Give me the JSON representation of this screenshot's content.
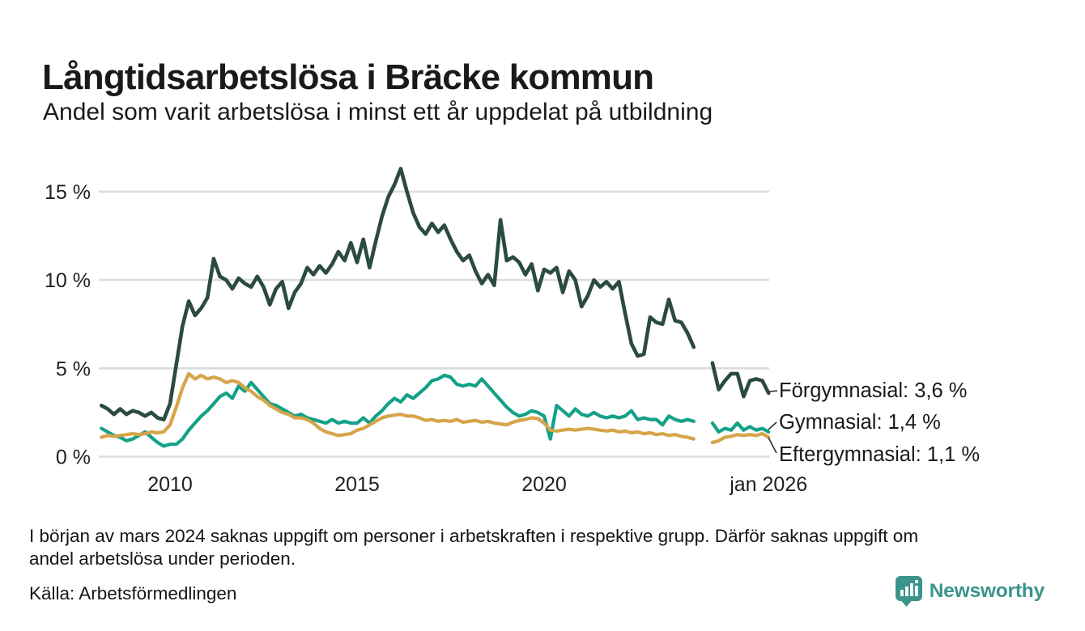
{
  "header": {
    "title": "Långtidsarbetslösa i Bräcke kommun",
    "subtitle": "Andel som varit arbetslösa i minst ett år uppdelat på utbildning"
  },
  "footer": {
    "note_lines": [
      "I början av mars 2024 saknas uppgift om personer i arbetskraften i respektive grupp. Därför saknas uppgift om",
      "andel arbetslösa under perioden."
    ],
    "source": "Källa: Arbetsförmedlingen"
  },
  "branding": {
    "name": "Newsworthy",
    "color": "#3b948c"
  },
  "chart_data": {
    "type": "line",
    "title": "Långtidsarbetslösa i Bräcke kommun",
    "subtitle": "Andel som varit arbetslösa i minst ett år uppdelat på utbildning",
    "x_start": "2008-03",
    "x_step_months": 2,
    "x_end": "2026-01",
    "ylim": [
      0,
      17
    ],
    "grid": true,
    "legend_position": "right-annotations",
    "missing_data_period": "2024 (vår), visas som glapp i linjerna",
    "y_ticks": [
      {
        "label": "0 %",
        "value": 0
      },
      {
        "label": "5 %",
        "value": 5
      },
      {
        "label": "10 %",
        "value": 10
      },
      {
        "label": "15 %",
        "value": 15
      }
    ],
    "x_ticks": [
      {
        "label": "2010",
        "year": 2010
      },
      {
        "label": "2015",
        "year": 2015
      },
      {
        "label": "2020",
        "year": 2020
      },
      {
        "label": "jan 2026",
        "year": 2026
      }
    ],
    "series": [
      {
        "id": "forgymnasial",
        "name": "Förgymnasial",
        "end_label": "Förgymnasial: 3,6 %",
        "latest_value": 3.6,
        "color": "#2a4a42",
        "width": 4.6,
        "values": [
          2.9,
          2.7,
          2.4,
          2.7,
          2.4,
          2.6,
          2.5,
          2.3,
          2.5,
          2.2,
          2.1,
          3.0,
          5.2,
          7.4,
          8.8,
          8.0,
          8.4,
          9.0,
          11.2,
          10.2,
          10.0,
          9.5,
          10.1,
          9.8,
          9.6,
          10.2,
          9.6,
          8.6,
          9.5,
          9.9,
          8.4,
          9.3,
          9.8,
          10.7,
          10.3,
          10.8,
          10.4,
          10.9,
          11.6,
          11.1,
          12.1,
          11.0,
          12.3,
          10.7,
          12.2,
          13.6,
          14.7,
          15.4,
          16.3,
          15.0,
          13.8,
          13.0,
          12.6,
          13.2,
          12.7,
          13.1,
          12.3,
          11.6,
          11.1,
          11.4,
          10.5,
          9.8,
          10.3,
          9.7,
          13.4,
          11.1,
          11.3,
          11.0,
          10.3,
          10.9,
          9.4,
          10.6,
          10.4,
          10.7,
          9.3,
          10.5,
          10.0,
          8.5,
          9.1,
          10.0,
          9.6,
          9.9,
          9.5,
          9.9,
          8.1,
          6.4,
          5.7,
          5.8,
          7.9,
          7.6,
          7.5,
          8.9,
          7.7,
          7.6,
          7.0,
          6.2,
          null,
          null,
          5.3,
          3.8,
          4.3,
          4.7,
          4.7,
          3.4,
          4.3,
          4.4,
          4.3,
          3.6
        ]
      },
      {
        "id": "gymnasial",
        "name": "Gymnasial",
        "end_label": "Gymnasial: 1,4 %",
        "latest_value": 1.4,
        "color": "#14a187",
        "width": 4.2,
        "values": [
          1.6,
          1.4,
          1.2,
          1.1,
          0.9,
          1.0,
          1.2,
          1.4,
          1.1,
          0.8,
          0.6,
          0.7,
          0.7,
          1.0,
          1.5,
          1.9,
          2.3,
          2.6,
          3.0,
          3.4,
          3.6,
          3.3,
          4.0,
          3.7,
          4.2,
          3.8,
          3.4,
          3.0,
          2.9,
          2.7,
          2.5,
          2.3,
          2.4,
          2.2,
          2.1,
          2.0,
          1.9,
          2.1,
          1.9,
          2.0,
          1.9,
          1.9,
          2.2,
          1.9,
          2.3,
          2.6,
          3.0,
          3.3,
          3.1,
          3.5,
          3.3,
          3.6,
          3.9,
          4.3,
          4.4,
          4.6,
          4.5,
          4.1,
          4.0,
          4.1,
          4.0,
          4.4,
          4.0,
          3.6,
          3.2,
          2.8,
          2.5,
          2.3,
          2.4,
          2.6,
          2.5,
          2.3,
          1.0,
          2.9,
          2.6,
          2.3,
          2.7,
          2.4,
          2.3,
          2.5,
          2.3,
          2.2,
          2.3,
          2.2,
          2.3,
          2.6,
          2.1,
          2.2,
          2.1,
          2.1,
          1.8,
          2.3,
          2.1,
          2.0,
          2.1,
          2.0,
          null,
          null,
          1.9,
          1.4,
          1.6,
          1.5,
          1.9,
          1.5,
          1.7,
          1.5,
          1.6,
          1.4
        ]
      },
      {
        "id": "eftergymnasial",
        "name": "Eftergymnasial",
        "end_label": "Eftergymnasial: 1,1 %",
        "latest_value": 1.1,
        "color": "#d6a44a",
        "width": 4.2,
        "values": [
          1.1,
          1.2,
          1.15,
          1.2,
          1.25,
          1.3,
          1.25,
          1.3,
          1.4,
          1.35,
          1.4,
          1.8,
          2.8,
          3.9,
          4.7,
          4.4,
          4.6,
          4.4,
          4.5,
          4.4,
          4.2,
          4.3,
          4.2,
          3.9,
          3.7,
          3.4,
          3.2,
          2.9,
          2.7,
          2.5,
          2.4,
          2.2,
          2.2,
          2.1,
          1.9,
          1.6,
          1.4,
          1.3,
          1.2,
          1.25,
          1.3,
          1.5,
          1.6,
          1.8,
          2.0,
          2.2,
          2.3,
          2.35,
          2.4,
          2.3,
          2.3,
          2.2,
          2.05,
          2.1,
          2.0,
          2.05,
          2.0,
          2.1,
          1.95,
          2.0,
          2.05,
          1.95,
          2.0,
          1.9,
          1.85,
          1.8,
          1.95,
          2.05,
          2.1,
          2.2,
          2.15,
          1.9,
          1.5,
          1.45,
          1.5,
          1.55,
          1.5,
          1.55,
          1.6,
          1.55,
          1.5,
          1.45,
          1.5,
          1.4,
          1.45,
          1.35,
          1.4,
          1.3,
          1.35,
          1.25,
          1.3,
          1.2,
          1.25,
          1.15,
          1.1,
          1.0,
          null,
          null,
          0.8,
          0.9,
          1.1,
          1.15,
          1.25,
          1.2,
          1.25,
          1.2,
          1.3,
          1.1
        ]
      }
    ]
  }
}
